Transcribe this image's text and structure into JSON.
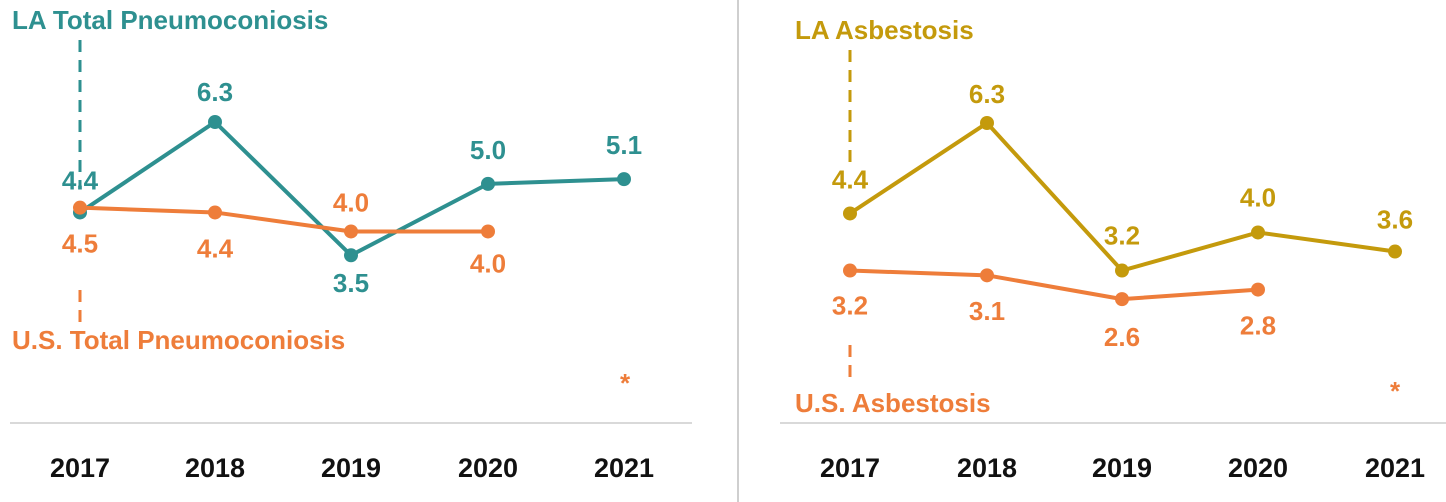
{
  "chart_data": [
    {
      "type": "line",
      "categories": [
        "2017",
        "2018",
        "2019",
        "2020",
        "2021"
      ],
      "series": [
        {
          "name": "LA Total Pneumoconiosis",
          "color": "#2e9090",
          "values": [
            4.4,
            6.3,
            3.5,
            5.0,
            5.1
          ],
          "value_labels": [
            "4.4",
            "6.3",
            "3.5",
            "5.0",
            "5.1"
          ]
        },
        {
          "name": "U.S. Total Pneumoconiosis",
          "color": "#ee7d3a",
          "values": [
            4.5,
            4.4,
            4.0,
            4.0,
            null
          ],
          "value_labels": [
            "4.5",
            "4.4",
            "4.0",
            "4.0",
            null
          ]
        }
      ],
      "annotation": "*"
    },
    {
      "type": "line",
      "categories": [
        "2017",
        "2018",
        "2019",
        "2020",
        "2021"
      ],
      "series": [
        {
          "name": "LA Asbestosis",
          "color": "#c49a0c",
          "values": [
            4.4,
            6.3,
            3.2,
            4.0,
            3.6
          ],
          "value_labels": [
            "4.4",
            "6.3",
            "3.2",
            "4.0",
            "3.6"
          ]
        },
        {
          "name": "U.S. Asbestosis",
          "color": "#ee7d3a",
          "values": [
            3.2,
            3.1,
            2.6,
            2.8,
            null
          ],
          "value_labels": [
            "3.2",
            "3.1",
            "2.6",
            "2.8",
            null
          ]
        }
      ],
      "annotation": "*"
    }
  ]
}
